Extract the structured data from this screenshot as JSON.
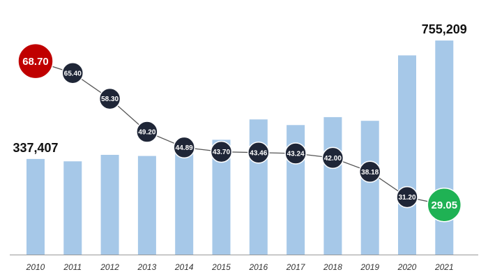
{
  "chart_data": {
    "type": "bar",
    "categories": [
      "2010",
      "2011",
      "2012",
      "2013",
      "2014",
      "2015",
      "2016",
      "2017",
      "2018",
      "2019",
      "2020",
      "2021"
    ],
    "series": [
      {
        "type": "bar",
        "values": [
          337407,
          329000,
          352000,
          348000,
          395000,
          405000,
          477000,
          457000,
          485000,
          472000,
          703000,
          755209
        ],
        "labels": {
          "2010": "337,407",
          "2021": "755,209"
        }
      },
      {
        "type": "line",
        "values": [
          68.7,
          65.4,
          58.3,
          49.2,
          44.89,
          43.7,
          43.46,
          43.24,
          42.0,
          38.18,
          31.2,
          29.05
        ],
        "labels": [
          "68.70",
          "65.40",
          "58.30",
          "49.20",
          "44.89",
          "43.70",
          "43.46",
          "43.24",
          "42.00",
          "38.18",
          "31.20",
          "29.05"
        ]
      }
    ],
    "bar_axis_range": [
      0,
      790000
    ],
    "line_axis_range": [
      24,
      74
    ],
    "grid": false,
    "legend": "none",
    "colors": {
      "bar": "#a6c8e8",
      "line": "#555555",
      "point": "#1f2637",
      "point_max": "#c00000",
      "point_min": "#1fb254",
      "axis": "#999999"
    }
  }
}
